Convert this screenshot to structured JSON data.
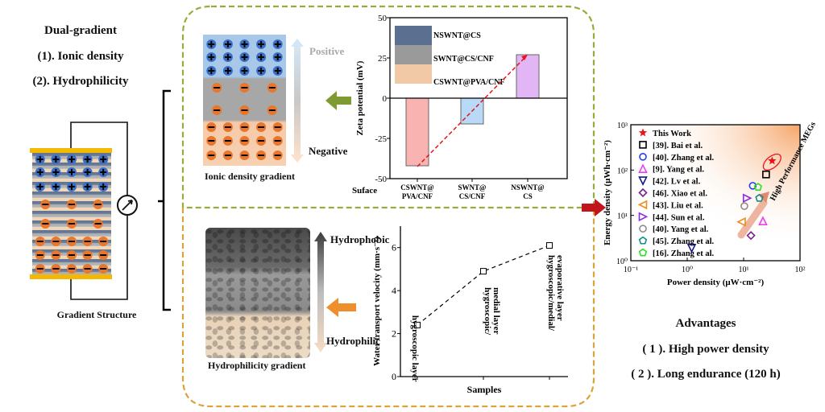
{
  "left": {
    "title": "Dual-gradient",
    "item1": "(1). Ionic density",
    "item2": "(2). Hydrophilicity",
    "structure_label": "Gradient Structure"
  },
  "ionic_panel": {
    "positive_label": "Positive",
    "negative_label": "Negative",
    "caption": "Ionic density gradient"
  },
  "hydro_panel": {
    "top_label": "Hydrophobic",
    "bottom_label": "Hydrophilic",
    "caption": "Hydrophilicity gradient"
  },
  "advantages": {
    "title": "Advantages",
    "item1": "( 1 ). High power density",
    "item2": "( 2 ). Long endurance (120 h)"
  },
  "colors": {
    "top_box": "#9aab3c",
    "bottom_box": "#d9a43a",
    "electrode": "#f5b800",
    "positive_ion": "#3a6fc4",
    "negative_ion": "#e8762c",
    "red_arrow": "#c0161b"
  },
  "chart_data": [
    {
      "type": "bar",
      "ylabel": "Zeta potential (mV)",
      "xlabel": "Suface",
      "categories": [
        "CSWNT@\nPVA/CNF",
        "SWNT@\nCS/CNF",
        "NSWNT@\nCS"
      ],
      "category_lines": [
        [
          "CSWNT@",
          "PVA/CNF"
        ],
        [
          "SWNT@",
          "CS/CNF"
        ],
        [
          "NSWNT@",
          "CS"
        ]
      ],
      "values": [
        -42,
        -16,
        27
      ],
      "bar_colors": [
        "#f9b3b0",
        "#b8daf7",
        "#e2b6f5"
      ],
      "ylim": [
        -50,
        50
      ],
      "yticks": [
        "-50",
        "-25",
        "0",
        "25",
        "50"
      ],
      "inset_labels": [
        "NSWNT@CS",
        "SWNT@CS/CNF",
        "CSWNT@PVA/CNF"
      ],
      "trend_line": "red dashed arrow"
    },
    {
      "type": "line",
      "ylabel": "Water transport velocity (mm·s⁻¹)",
      "xlabel": "Samples",
      "categories": [
        "hygroscopic layer",
        "hygroscopic/ medial layer",
        "hygroscopic/medial/ evaporative layer"
      ],
      "category_lines": [
        [
          "hygroscopic layer"
        ],
        [
          "hygroscopic/",
          "medial layer"
        ],
        [
          "hygroscopic/medial/",
          "evaporative layer"
        ]
      ],
      "values": [
        2.4,
        4.9,
        6.1
      ],
      "ylim": [
        0,
        7
      ],
      "yticks": [
        "0",
        "2",
        "4",
        "6"
      ],
      "line_style": "dashed",
      "marker": "open square"
    },
    {
      "type": "scatter",
      "xlabel": "Power density (μW·cm⁻²)",
      "ylabel": "Energy density (μWh·cm⁻²)",
      "xscale": "log",
      "yscale": "log",
      "xlim": [
        0.1,
        100
      ],
      "ylim": [
        1,
        1000
      ],
      "xticks": [
        "10⁻¹",
        "10⁰",
        "10¹",
        "10²"
      ],
      "yticks": [
        "10⁰",
        "10¹",
        "10²",
        "10³"
      ],
      "legend": "top-left",
      "annotation": "High Performance MEGs",
      "series": [
        {
          "name": "This Work",
          "marker": "star",
          "color": "#e8141b",
          "x": 32,
          "y": 160
        },
        {
          "name": "[39]. Bai et al.",
          "marker": "square",
          "color": "#000000",
          "x": 25,
          "y": 80
        },
        {
          "name": "[40]. Zhang et al.",
          "marker": "circle",
          "color": "#1f3ff0",
          "x": 14.5,
          "y": 45
        },
        {
          "name": "[9]. Yang et al.",
          "marker": "triangle-up",
          "color": "#f03cf0",
          "x": 22,
          "y": 7.5
        },
        {
          "name": "[42]. Lv et al.",
          "marker": "triangle-down",
          "color": "#14148c",
          "x": 1.2,
          "y": 1.9
        },
        {
          "name": "[46]. Xiao et al.",
          "marker": "diamond",
          "color": "#7a1f8c",
          "x": 13.5,
          "y": 3.6
        },
        {
          "name": "[43]. Liu et al.",
          "marker": "triangle-left",
          "color": "#f08a1e",
          "x": 9.2,
          "y": 7.2
        },
        {
          "name": "[44]. Sun et al.",
          "marker": "triangle-right",
          "color": "#8a2be2",
          "x": 11.5,
          "y": 24
        },
        {
          "name": "[40]. Yang et al.",
          "marker": "circle",
          "color": "#8c8c8c",
          "x": 10.3,
          "y": 16
        },
        {
          "name": "[45]. Zhang et al.",
          "marker": "pentagon",
          "color": "#138c8c",
          "x": 19,
          "y": 24
        },
        {
          "name": "[16]. Zhang et al.",
          "marker": "pentagon",
          "color": "#2ce02c",
          "x": 18,
          "y": 42
        }
      ]
    }
  ]
}
